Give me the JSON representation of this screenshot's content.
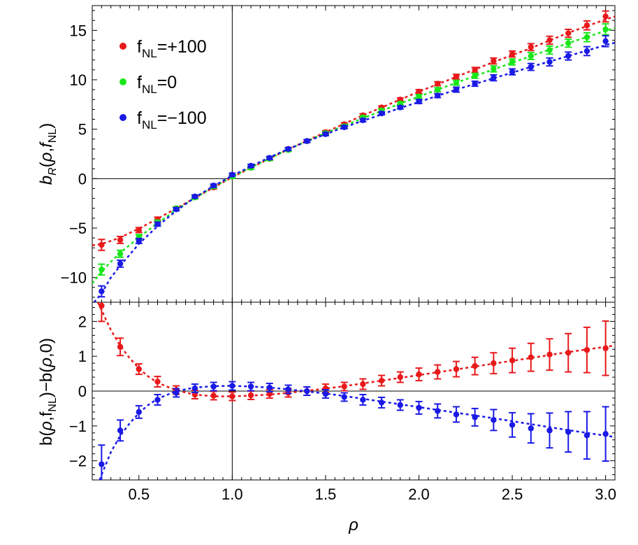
{
  "chart_data": [
    {
      "type": "scatter",
      "panel": "top",
      "xlabel": "",
      "ylabel": "b_R(ρ,f_NL)",
      "xlim": [
        0.25,
        3.05
      ],
      "ylim": [
        -12.5,
        17.5
      ],
      "yticks": [
        -10,
        -5,
        0,
        5,
        10,
        15
      ],
      "yticklabels": [
        "−10",
        "−5",
        "0",
        "5",
        "10",
        "15"
      ],
      "crosshair": {
        "x": 1.0,
        "y": 0
      },
      "legend": {
        "position": "top-left"
      },
      "x": [
        0.3,
        0.4,
        0.5,
        0.6,
        0.7,
        0.8,
        0.9,
        1.0,
        1.1,
        1.2,
        1.3,
        1.4,
        1.5,
        1.6,
        1.7,
        1.8,
        1.9,
        2.0,
        2.1,
        2.2,
        2.3,
        2.4,
        2.5,
        2.6,
        2.7,
        2.8,
        2.9,
        3.0
      ],
      "series": [
        {
          "name": "+100",
          "color": "#e8191b",
          "y": [
            -6.7,
            -6.2,
            -5.2,
            -4.1,
            -3.0,
            -1.9,
            -0.9,
            0.2,
            1.1,
            2.0,
            3.0,
            3.8,
            4.7,
            5.5,
            6.4,
            7.2,
            8.0,
            8.8,
            9.6,
            10.3,
            11.0,
            11.9,
            12.6,
            13.3,
            14.0,
            14.7,
            15.5,
            16.4
          ],
          "err": [
            0.55,
            0.35,
            0.25,
            0.2,
            0.15,
            0.15,
            0.15,
            0.15,
            0.15,
            0.15,
            0.15,
            0.15,
            0.15,
            0.15,
            0.15,
            0.15,
            0.15,
            0.2,
            0.2,
            0.25,
            0.25,
            0.3,
            0.3,
            0.35,
            0.4,
            0.4,
            0.45,
            0.55
          ],
          "fit": [
            [
              0.25,
              -6.75
            ],
            [
              0.3,
              -6.6
            ],
            [
              0.35,
              -6.3
            ],
            [
              0.4,
              -5.95
            ],
            [
              0.5,
              -5.05
            ],
            [
              0.6,
              -4.05
            ],
            [
              0.7,
              -3.0
            ],
            [
              0.8,
              -1.95
            ],
            [
              0.9,
              -0.9
            ],
            [
              1.0,
              0.15
            ],
            [
              1.1,
              1.1
            ],
            [
              1.2,
              2.05
            ],
            [
              1.3,
              2.95
            ],
            [
              1.4,
              3.85
            ],
            [
              1.5,
              4.7
            ],
            [
              1.6,
              5.55
            ],
            [
              1.7,
              6.4
            ],
            [
              1.8,
              7.2
            ],
            [
              1.9,
              8.0
            ],
            [
              2.0,
              8.8
            ],
            [
              2.2,
              10.3
            ],
            [
              2.4,
              11.8
            ],
            [
              2.6,
              13.2
            ],
            [
              2.8,
              14.75
            ],
            [
              3.0,
              16.1
            ],
            [
              3.05,
              16.4
            ]
          ]
        },
        {
          "name": "0",
          "color": "#19e619",
          "y": [
            -9.2,
            -7.6,
            -5.9,
            -4.4,
            -3.0,
            -1.9,
            -0.8,
            0.2,
            1.1,
            2.0,
            2.9,
            3.8,
            4.6,
            5.3,
            6.2,
            6.9,
            7.6,
            8.3,
            9.0,
            9.7,
            10.4,
            11.1,
            11.8,
            12.4,
            13.0,
            13.7,
            14.3,
            15.1
          ],
          "err": [
            0.55,
            0.35,
            0.25,
            0.2,
            0.15,
            0.15,
            0.15,
            0.15,
            0.15,
            0.15,
            0.15,
            0.15,
            0.15,
            0.15,
            0.15,
            0.15,
            0.15,
            0.2,
            0.2,
            0.25,
            0.25,
            0.3,
            0.3,
            0.35,
            0.4,
            0.4,
            0.45,
            0.55
          ],
          "fit": [
            [
              0.25,
              -10.6
            ],
            [
              0.3,
              -9.4
            ],
            [
              0.35,
              -8.4
            ],
            [
              0.4,
              -7.5
            ],
            [
              0.5,
              -5.95
            ],
            [
              0.6,
              -4.5
            ],
            [
              0.7,
              -3.15
            ],
            [
              0.8,
              -1.95
            ],
            [
              0.9,
              -0.85
            ],
            [
              1.0,
              0.2
            ],
            [
              1.1,
              1.15
            ],
            [
              1.2,
              2.05
            ],
            [
              1.3,
              2.95
            ],
            [
              1.4,
              3.8
            ],
            [
              1.5,
              4.6
            ],
            [
              1.6,
              5.35
            ],
            [
              1.7,
              6.1
            ],
            [
              1.8,
              6.85
            ],
            [
              1.9,
              7.6
            ],
            [
              2.0,
              8.3
            ],
            [
              2.2,
              9.7
            ],
            [
              2.4,
              11.05
            ],
            [
              2.6,
              12.4
            ],
            [
              2.8,
              13.7
            ],
            [
              3.0,
              14.95
            ],
            [
              3.05,
              15.2
            ]
          ]
        },
        {
          "name": "−100",
          "color": "#1a19e6",
          "y": [
            -11.4,
            -8.6,
            -6.3,
            -4.6,
            -3.1,
            -1.8,
            -0.7,
            0.4,
            1.3,
            2.1,
            3.0,
            3.8,
            4.5,
            5.2,
            5.9,
            6.6,
            7.2,
            7.8,
            8.4,
            9.0,
            9.6,
            10.2,
            10.8,
            11.3,
            11.8,
            12.4,
            12.9,
            13.9
          ],
          "err": [
            0.55,
            0.35,
            0.25,
            0.2,
            0.15,
            0.15,
            0.15,
            0.15,
            0.15,
            0.15,
            0.15,
            0.15,
            0.15,
            0.15,
            0.15,
            0.15,
            0.15,
            0.2,
            0.2,
            0.25,
            0.25,
            0.3,
            0.3,
            0.35,
            0.4,
            0.4,
            0.45,
            0.55
          ],
          "fit": [
            [
              0.26,
              -12.5
            ],
            [
              0.3,
              -11.6
            ],
            [
              0.35,
              -10.0
            ],
            [
              0.4,
              -8.8
            ],
            [
              0.5,
              -6.6
            ],
            [
              0.6,
              -4.8
            ],
            [
              0.7,
              -3.25
            ],
            [
              0.8,
              -1.9
            ],
            [
              0.9,
              -0.75
            ],
            [
              1.0,
              0.3
            ],
            [
              1.1,
              1.25
            ],
            [
              1.2,
              2.15
            ],
            [
              1.3,
              3.0
            ],
            [
              1.4,
              3.75
            ],
            [
              1.5,
              4.5
            ],
            [
              1.6,
              5.2
            ],
            [
              1.7,
              5.85
            ],
            [
              1.8,
              6.5
            ],
            [
              1.9,
              7.15
            ],
            [
              2.0,
              7.75
            ],
            [
              2.2,
              9.0
            ],
            [
              2.4,
              10.15
            ],
            [
              2.6,
              11.3
            ],
            [
              2.8,
              12.4
            ],
            [
              3.0,
              13.5
            ],
            [
              3.05,
              13.75
            ]
          ]
        }
      ]
    },
    {
      "type": "scatter",
      "panel": "bottom",
      "xlabel": "ρ",
      "ylabel": "b(ρ,f_NL)−b(ρ,0)",
      "xlim": [
        0.25,
        3.05
      ],
      "ylim": [
        -2.55,
        2.55
      ],
      "xticks": [
        0.5,
        1.0,
        1.5,
        2.0,
        2.5,
        3.0
      ],
      "xticklabels": [
        "0.5",
        "1.0",
        "1.5",
        "2.0",
        "2.5",
        "3.0"
      ],
      "yticks": [
        -2,
        -1,
        0,
        1,
        2
      ],
      "yticklabels": [
        "−2",
        "−1",
        "0",
        "1",
        "2"
      ],
      "crosshair": {
        "x": 1.0,
        "y": 0
      },
      "x": [
        0.3,
        0.4,
        0.5,
        0.6,
        0.7,
        0.8,
        0.9,
        1.0,
        1.1,
        1.2,
        1.3,
        1.4,
        1.5,
        1.6,
        1.7,
        1.8,
        1.9,
        2.0,
        2.1,
        2.2,
        2.3,
        2.4,
        2.5,
        2.6,
        2.7,
        2.8,
        2.9,
        3.0
      ],
      "series": [
        {
          "name": "+100",
          "color": "#e8191b",
          "y": [
            2.45,
            1.27,
            0.63,
            0.27,
            0.03,
            -0.1,
            -0.13,
            -0.15,
            -0.12,
            -0.08,
            -0.05,
            0.0,
            0.08,
            0.13,
            0.2,
            0.3,
            0.4,
            0.48,
            0.55,
            0.63,
            0.72,
            0.8,
            0.88,
            0.97,
            1.05,
            1.1,
            1.18,
            1.23
          ],
          "err": [
            0.45,
            0.25,
            0.15,
            0.15,
            0.12,
            0.12,
            0.12,
            0.12,
            0.12,
            0.12,
            0.12,
            0.12,
            0.12,
            0.12,
            0.15,
            0.15,
            0.15,
            0.18,
            0.2,
            0.22,
            0.25,
            0.3,
            0.35,
            0.4,
            0.45,
            0.55,
            0.65,
            0.78
          ],
          "fit": [
            [
              0.28,
              2.55
            ],
            [
              0.3,
              2.32
            ],
            [
              0.35,
              1.75
            ],
            [
              0.4,
              1.3
            ],
            [
              0.45,
              0.95
            ],
            [
              0.5,
              0.65
            ],
            [
              0.55,
              0.42
            ],
            [
              0.6,
              0.24
            ],
            [
              0.7,
              0.02
            ],
            [
              0.8,
              -0.1
            ],
            [
              0.9,
              -0.15
            ],
            [
              1.0,
              -0.15
            ],
            [
              1.1,
              -0.13
            ],
            [
              1.2,
              -0.1
            ],
            [
              1.3,
              -0.05
            ],
            [
              1.4,
              0.01
            ],
            [
              1.5,
              0.07
            ],
            [
              1.6,
              0.14
            ],
            [
              1.7,
              0.22
            ],
            [
              1.8,
              0.3
            ],
            [
              1.9,
              0.38
            ],
            [
              2.0,
              0.46
            ],
            [
              2.2,
              0.62
            ],
            [
              2.4,
              0.79
            ],
            [
              2.6,
              0.95
            ],
            [
              2.8,
              1.12
            ],
            [
              3.0,
              1.27
            ],
            [
              3.05,
              1.31
            ]
          ]
        },
        {
          "name": "−100",
          "color": "#1a19e6",
          "y": [
            -2.1,
            -1.13,
            -0.6,
            -0.25,
            -0.05,
            0.08,
            0.13,
            0.15,
            0.13,
            0.1,
            0.05,
            0.0,
            -0.08,
            -0.17,
            -0.25,
            -0.33,
            -0.4,
            -0.48,
            -0.57,
            -0.67,
            -0.75,
            -0.83,
            -0.97,
            -1.07,
            -1.13,
            -1.17,
            -1.27,
            -1.23
          ],
          "err": [
            0.55,
            0.3,
            0.18,
            0.15,
            0.12,
            0.12,
            0.12,
            0.12,
            0.12,
            0.12,
            0.12,
            0.12,
            0.12,
            0.12,
            0.15,
            0.15,
            0.15,
            0.18,
            0.2,
            0.22,
            0.25,
            0.3,
            0.35,
            0.42,
            0.5,
            0.58,
            0.68,
            0.78
          ],
          "fit": [
            [
              0.29,
              -2.55
            ],
            [
              0.3,
              -2.4
            ],
            [
              0.35,
              -1.75
            ],
            [
              0.4,
              -1.28
            ],
            [
              0.45,
              -0.93
            ],
            [
              0.5,
              -0.63
            ],
            [
              0.55,
              -0.4
            ],
            [
              0.6,
              -0.22
            ],
            [
              0.7,
              0.0
            ],
            [
              0.8,
              0.1
            ],
            [
              0.9,
              0.14
            ],
            [
              1.0,
              0.15
            ],
            [
              1.1,
              0.13
            ],
            [
              1.2,
              0.1
            ],
            [
              1.3,
              0.05
            ],
            [
              1.4,
              -0.01
            ],
            [
              1.5,
              -0.07
            ],
            [
              1.6,
              -0.14
            ],
            [
              1.7,
              -0.22
            ],
            [
              1.8,
              -0.3
            ],
            [
              1.9,
              -0.38
            ],
            [
              2.0,
              -0.46
            ],
            [
              2.2,
              -0.62
            ],
            [
              2.4,
              -0.78
            ],
            [
              2.6,
              -0.95
            ],
            [
              2.8,
              -1.12
            ],
            [
              3.0,
              -1.28
            ],
            [
              3.05,
              -1.32
            ]
          ]
        }
      ]
    }
  ]
}
